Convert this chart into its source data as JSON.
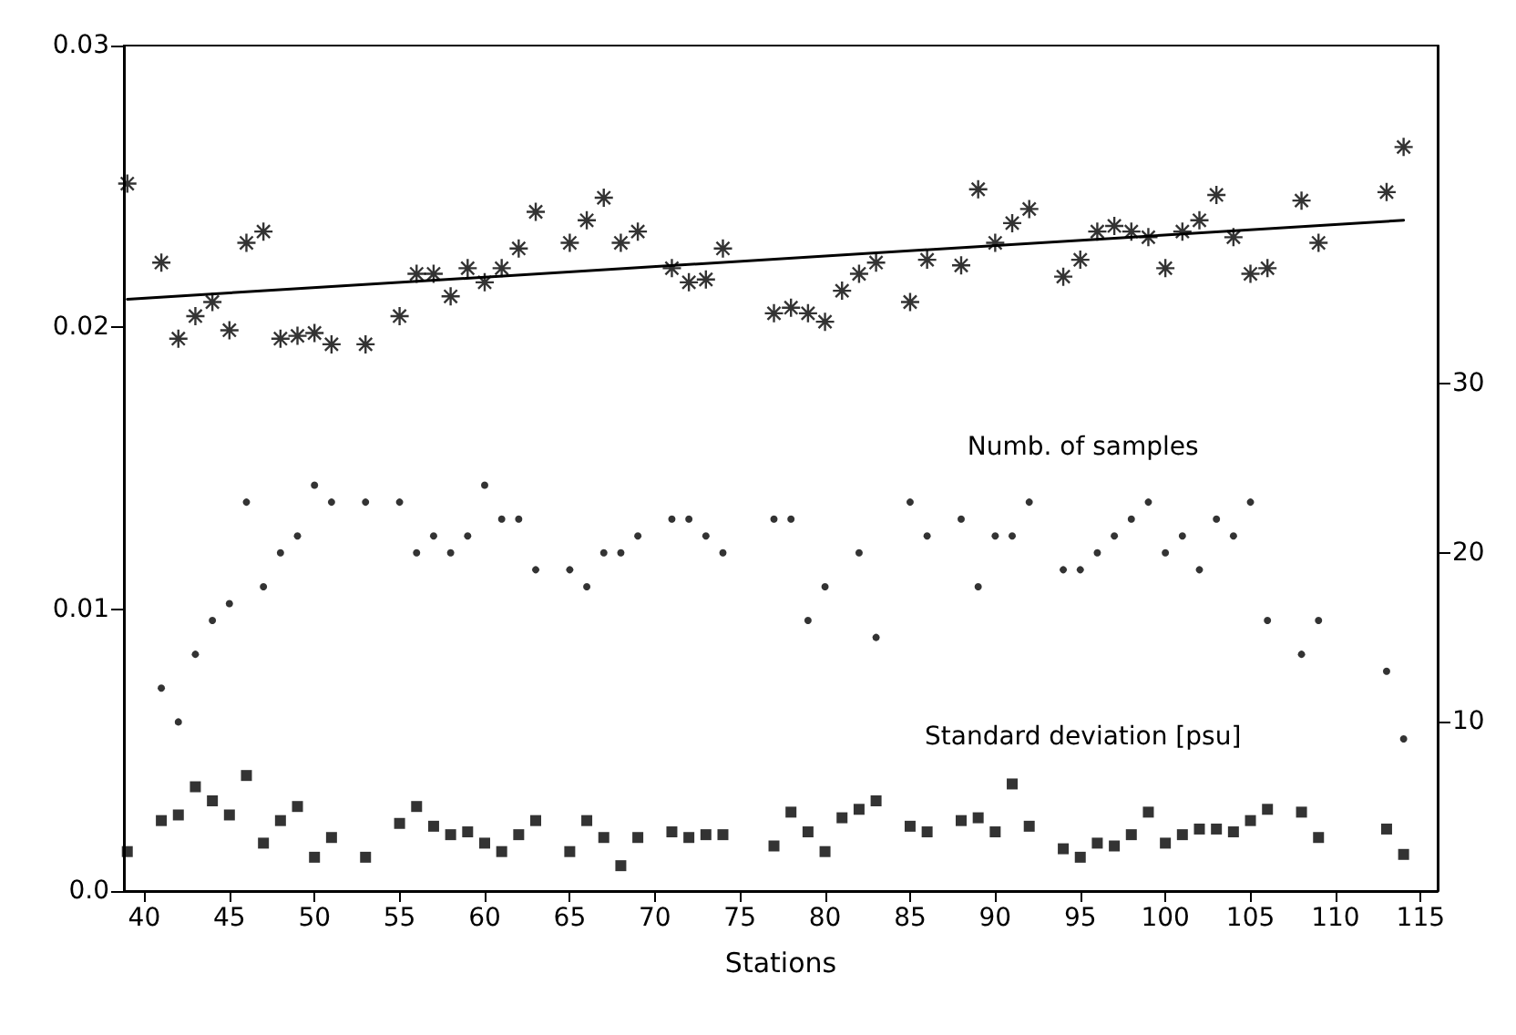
{
  "chart_data": {
    "type": "scatter",
    "xlabel": "Stations",
    "xlim": [
      38.8,
      116
    ],
    "xticks": [
      40,
      45,
      50,
      55,
      60,
      65,
      70,
      75,
      80,
      85,
      90,
      95,
      100,
      105,
      110,
      115
    ],
    "ylim": [
      0,
      0.03
    ],
    "yticks": [
      {
        "value": 0,
        "label": "0.0"
      },
      0.01,
      0.02,
      0.03
    ],
    "y2lim": [
      0,
      50
    ],
    "y2ticks": [
      10,
      20,
      30
    ],
    "grid": false,
    "legend": false,
    "series": [
      {
        "marker": "cross",
        "color": "#000000",
        "x": [
          39,
          41,
          42,
          43,
          44,
          45,
          46,
          47,
          48,
          49,
          50,
          51,
          53,
          55,
          56,
          57,
          58,
          59,
          60,
          61,
          62,
          63,
          65,
          66,
          67,
          68,
          69,
          71,
          72,
          73,
          74,
          77,
          78,
          79,
          80,
          81,
          82,
          83,
          85,
          86,
          88,
          89,
          90,
          91,
          92,
          94,
          95,
          96,
          97,
          98,
          99,
          100,
          101,
          102,
          103,
          104,
          105,
          106,
          108,
          109,
          113,
          114
        ],
        "values": [
          0.0251,
          0.0223,
          0.0196,
          0.0204,
          0.0209,
          0.0199,
          0.023,
          0.0234,
          0.0196,
          0.0197,
          0.0198,
          0.0194,
          0.0194,
          0.0204,
          0.0219,
          0.0219,
          0.0211,
          0.0221,
          0.0216,
          0.0221,
          0.0228,
          0.0241,
          0.023,
          0.0238,
          0.0246,
          0.023,
          0.0234,
          0.0221,
          0.0216,
          0.0217,
          0.0228,
          0.0205,
          0.0207,
          0.0205,
          0.0202,
          0.0213,
          0.0219,
          0.0223,
          0.0209,
          0.0224,
          0.0222,
          0.0249,
          0.023,
          0.0237,
          0.0242,
          0.0218,
          0.0224,
          0.0234,
          0.0236,
          0.0234,
          0.0232,
          0.0221,
          0.0234,
          0.0238,
          0.0247,
          0.0232,
          0.0219,
          0.0221,
          0.0245,
          0.023,
          0.0248,
          0.0264
        ]
      },
      {
        "type": "line",
        "marker": "none",
        "color": "#000000",
        "x": [
          39,
          114
        ],
        "values": [
          0.021,
          0.0238
        ]
      },
      {
        "name": "Numb. of samples",
        "axis": "y2",
        "marker": "circle",
        "color": "#000000",
        "x": [
          41,
          42,
          43,
          44,
          45,
          46,
          47,
          48,
          49,
          50,
          51,
          53,
          55,
          56,
          57,
          58,
          59,
          60,
          61,
          62,
          63,
          65,
          66,
          67,
          68,
          69,
          71,
          72,
          73,
          74,
          77,
          78,
          79,
          80,
          82,
          83,
          85,
          86,
          88,
          89,
          90,
          91,
          92,
          94,
          95,
          96,
          97,
          98,
          99,
          100,
          101,
          102,
          103,
          104,
          105,
          106,
          108,
          109,
          113,
          114
        ],
        "values": [
          12,
          10,
          14,
          16,
          17,
          23,
          18,
          20,
          21,
          24,
          23,
          23,
          23,
          20,
          21,
          20,
          21,
          24,
          22,
          22,
          19,
          19,
          18,
          20,
          20,
          21,
          22,
          22,
          21,
          20,
          22,
          22,
          16,
          18,
          20,
          15,
          23,
          21,
          22,
          18,
          21,
          21,
          23,
          19,
          19,
          20,
          21,
          22,
          23,
          20,
          21,
          19,
          22,
          21,
          23,
          16,
          14,
          16,
          13,
          9
        ]
      },
      {
        "name": "Standard deviation [psu]",
        "marker": "square",
        "color": "#000000",
        "x": [
          39,
          41,
          42,
          43,
          44,
          45,
          46,
          47,
          48,
          49,
          50,
          51,
          53,
          55,
          56,
          57,
          58,
          59,
          60,
          61,
          62,
          63,
          65,
          66,
          67,
          68,
          69,
          71,
          72,
          73,
          74,
          77,
          78,
          79,
          80,
          81,
          82,
          83,
          85,
          86,
          88,
          89,
          90,
          91,
          92,
          94,
          95,
          96,
          97,
          98,
          99,
          100,
          101,
          102,
          103,
          104,
          105,
          106,
          108,
          109,
          113,
          114
        ],
        "values": [
          0.0014,
          0.0025,
          0.0027,
          0.0037,
          0.0032,
          0.0027,
          0.0041,
          0.0017,
          0.0025,
          0.003,
          0.0012,
          0.0019,
          0.0012,
          0.0024,
          0.003,
          0.0023,
          0.002,
          0.0021,
          0.0017,
          0.0014,
          0.002,
          0.0025,
          0.0014,
          0.0025,
          0.0019,
          0.0009,
          0.0019,
          0.0021,
          0.0019,
          0.002,
          0.002,
          0.0016,
          0.0028,
          0.0021,
          0.0014,
          0.0026,
          0.0029,
          0.0032,
          0.0023,
          0.0021,
          0.0025,
          0.0026,
          0.0021,
          0.0038,
          0.0023,
          0.0015,
          0.0012,
          0.0017,
          0.0016,
          0.002,
          0.0028,
          0.0017,
          0.002,
          0.0022,
          0.0022,
          0.0021,
          0.0025,
          0.0029,
          0.0028,
          0.0019,
          0.0022,
          0.0013
        ]
      }
    ]
  }
}
